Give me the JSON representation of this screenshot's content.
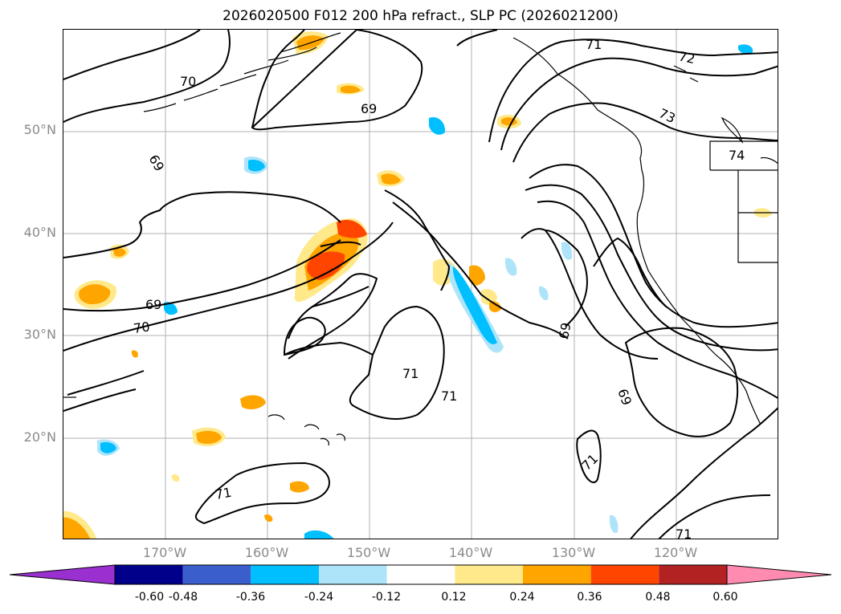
{
  "title": "2026020500 F012 200 hPa refract., SLP PC (2026021200)",
  "lat_labels": [
    "50°N",
    "40°N",
    "30°N",
    "20°N"
  ],
  "lon_labels": [
    "170°W",
    "160°W",
    "150°W",
    "140°W",
    "130°W",
    "120°W"
  ],
  "contour_labels": [
    "70",
    "69",
    "69",
    "69",
    "70",
    "71",
    "71",
    "71",
    "71",
    "72",
    "73",
    "74",
    "69",
    "69",
    "71",
    "71"
  ],
  "colorbar": {
    "ticks": [
      "-0.60",
      "-0.48",
      "-0.36",
      "-0.24",
      "-0.12",
      "0.12",
      "0.24",
      "0.36",
      "0.48",
      "0.60"
    ],
    "colors": [
      "#9a30d0",
      "#00008b",
      "#3a5fcd",
      "#00bfff",
      "#aee4fa",
      "#ffffff",
      "#ffe98a",
      "#ffa500",
      "#ff4500",
      "#b22222",
      "#ff8cb0"
    ]
  }
}
